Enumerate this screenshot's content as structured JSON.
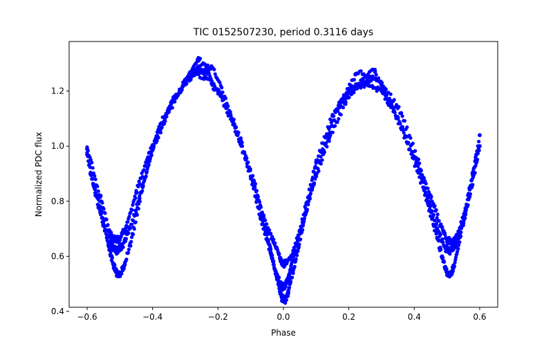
{
  "chart_data": {
    "type": "scatter",
    "title": "TIC 0152507230, period 0.3116 days",
    "xlabel": "Phase",
    "ylabel": "Normalized PDC flux",
    "xlim": [
      -0.655,
      0.655
    ],
    "ylim": [
      0.415,
      1.38
    ],
    "x_ticks": [
      -0.6,
      -0.4,
      -0.2,
      0.0,
      0.2,
      0.4,
      0.6
    ],
    "x_tick_labels": [
      "−0.6",
      "−0.4",
      "−0.2",
      "0.0",
      "0.2",
      "0.4",
      "0.6"
    ],
    "y_ticks": [
      0.4,
      0.6,
      0.8,
      1.0,
      1.2
    ],
    "y_tick_labels": [
      "0.4",
      "0.6",
      "0.8",
      "1.0",
      "1.2"
    ],
    "grid": false,
    "marker_color": "#0000ff",
    "series": [
      {
        "marker": "circle",
        "color": "#0000ff",
        "x": [
          -0.6,
          -0.575,
          -0.55,
          -0.525,
          -0.51,
          -0.495,
          -0.47,
          -0.44,
          -0.4,
          -0.35,
          -0.3,
          -0.27,
          -0.24,
          -0.2,
          -0.15,
          -0.1,
          -0.07,
          -0.04,
          -0.02,
          -0.005,
          0.005,
          0.02,
          0.04,
          0.07,
          0.1,
          0.15,
          0.2,
          0.23,
          0.26,
          0.3,
          0.35,
          0.4,
          0.44,
          0.47,
          0.495,
          0.51,
          0.525,
          0.55,
          0.575,
          0.6
        ],
        "y": [
          0.97,
          0.83,
          0.71,
          0.64,
          0.62,
          0.63,
          0.7,
          0.81,
          0.99,
          1.13,
          1.23,
          1.27,
          1.25,
          1.2,
          1.08,
          0.89,
          0.74,
          0.62,
          0.53,
          0.49,
          0.49,
          0.54,
          0.64,
          0.79,
          0.94,
          1.11,
          1.2,
          1.22,
          1.23,
          1.2,
          1.1,
          0.96,
          0.82,
          0.7,
          0.63,
          0.62,
          0.64,
          0.72,
          0.85,
          1.0
        ]
      },
      {
        "marker": "circle",
        "color": "#0000ff",
        "x": [
          -0.6,
          -0.56,
          -0.53,
          -0.515,
          -0.5,
          -0.48,
          -0.45,
          -0.42,
          -0.38,
          -0.33,
          -0.29,
          -0.26,
          -0.23,
          -0.19,
          -0.14,
          -0.09,
          -0.06,
          -0.03,
          -0.01,
          0.0,
          0.01,
          0.03,
          0.06,
          0.09,
          0.14,
          0.19,
          0.24,
          0.27,
          0.31,
          0.36,
          0.41,
          0.45,
          0.48,
          0.5,
          0.515,
          0.53,
          0.56,
          0.6
        ],
        "y": [
          0.99,
          0.82,
          0.68,
          0.66,
          0.66,
          0.71,
          0.83,
          0.94,
          1.07,
          1.18,
          1.25,
          1.28,
          1.27,
          1.18,
          1.04,
          0.87,
          0.74,
          0.65,
          0.59,
          0.57,
          0.58,
          0.62,
          0.72,
          0.86,
          1.03,
          1.16,
          1.24,
          1.25,
          1.21,
          1.12,
          0.95,
          0.82,
          0.71,
          0.66,
          0.65,
          0.67,
          0.78,
          1.04
        ]
      },
      {
        "marker": "circle",
        "color": "#0000ff",
        "x": [
          -0.59,
          -0.56,
          -0.535,
          -0.52,
          -0.51,
          -0.5,
          -0.485,
          -0.46,
          -0.43,
          -0.39,
          -0.34,
          -0.3,
          -0.26,
          -0.22,
          -0.18,
          -0.13,
          -0.08,
          -0.05,
          -0.03,
          -0.015,
          -0.005,
          0.005,
          0.015,
          0.03,
          0.05,
          0.08,
          0.12,
          0.17,
          0.22,
          0.28,
          0.33,
          0.38,
          0.43,
          0.46,
          0.485,
          0.5,
          0.51,
          0.52,
          0.54,
          0.57,
          0.59
        ],
        "y": [
          0.9,
          0.78,
          0.64,
          0.57,
          0.54,
          0.53,
          0.57,
          0.68,
          0.86,
          1.02,
          1.16,
          1.24,
          1.31,
          1.29,
          1.18,
          1.02,
          0.81,
          0.68,
          0.57,
          0.5,
          0.45,
          0.44,
          0.47,
          0.55,
          0.66,
          0.82,
          0.98,
          1.15,
          1.26,
          1.27,
          1.15,
          1.01,
          0.84,
          0.71,
          0.6,
          0.54,
          0.53,
          0.56,
          0.67,
          0.85,
          0.97
        ]
      }
    ]
  }
}
